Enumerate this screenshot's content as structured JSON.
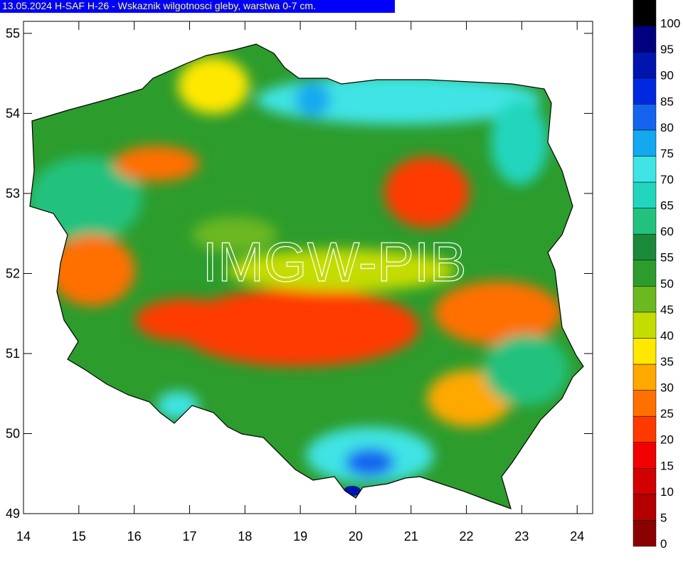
{
  "title": "13.05.2024 H-SAF H-26 - Wskaznik wilgotnosci gleby, warstwa 0-7 cm.",
  "watermark": "IMGW-PIB",
  "map": {
    "xlim": [
      14,
      24.28
    ],
    "ylim": [
      49,
      55.15
    ],
    "xticks": [
      14,
      15,
      16,
      17,
      18,
      19,
      20,
      21,
      22,
      23,
      24
    ],
    "yticks": [
      49,
      50,
      51,
      52,
      53,
      54,
      55
    ]
  },
  "colorbar": {
    "levels": [
      0,
      5,
      10,
      15,
      20,
      25,
      30,
      35,
      40,
      45,
      50,
      55,
      60,
      65,
      70,
      75,
      80,
      85,
      90,
      95,
      100
    ],
    "colors": [
      "#8b0000",
      "#b40000",
      "#d20000",
      "#f00000",
      "#ff3a00",
      "#ff7000",
      "#ffa800",
      "#ffe800",
      "#c4dc00",
      "#6cb820",
      "#2c9c2c",
      "#1a8a3a",
      "#22c27e",
      "#22d6be",
      "#40e4e4",
      "#14a8f0",
      "#1464f0",
      "#0028e0",
      "#0014b0",
      "#000080",
      "#000000"
    ]
  }
}
